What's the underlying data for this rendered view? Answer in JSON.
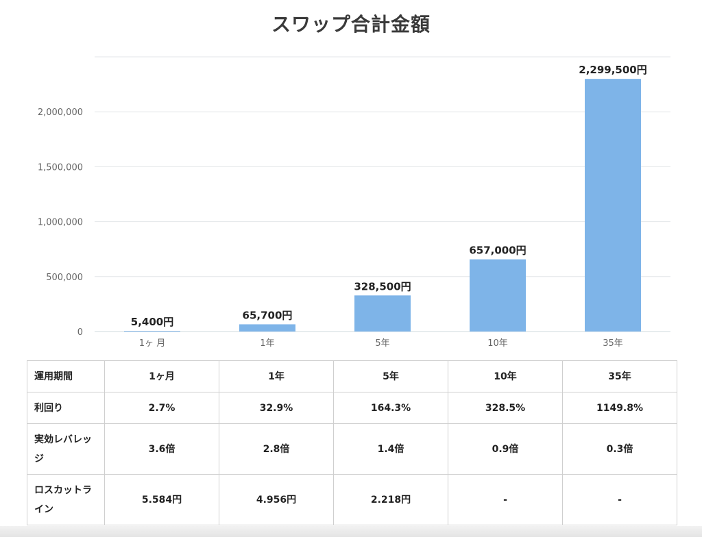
{
  "chart_data": {
    "type": "bar",
    "title": "スワップ合計金額",
    "categories": [
      "1ヶ 月",
      "1年",
      "5年",
      "10年",
      "35年"
    ],
    "values": [
      5400,
      65700,
      328500,
      657000,
      2299500
    ],
    "data_labels": [
      "5,400円",
      "65,700円",
      "328,500円",
      "657,000円",
      "2,299,500円"
    ],
    "yticks": [
      0,
      500000,
      1000000,
      1500000,
      2000000
    ],
    "ytick_labels": [
      "0",
      "500,000",
      "1,000,000",
      "1,500,000",
      "2,000,000"
    ],
    "ylim": [
      0,
      2500000
    ],
    "grid": true,
    "bar_color": "#7eb4e8"
  },
  "table": {
    "header": [
      "運用期間",
      "1ヶ月",
      "1年",
      "5年",
      "10年",
      "35年"
    ],
    "rows": [
      [
        "利回り",
        "2.7%",
        "32.9%",
        "164.3%",
        "328.5%",
        "1149.8%"
      ],
      [
        "実効レバレッジ",
        "3.6倍",
        "2.8倍",
        "1.4倍",
        "0.9倍",
        "0.3倍"
      ],
      [
        "ロスカットライン",
        "5.584円",
        "4.956円",
        "2.218円",
        "-",
        "-"
      ]
    ]
  }
}
